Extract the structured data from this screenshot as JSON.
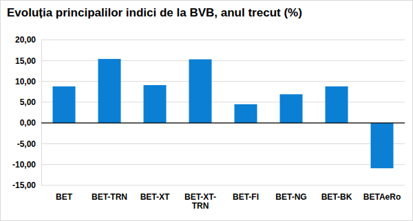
{
  "chart_data": {
    "type": "bar",
    "title": "Evoluția principalilor indici de la BVB, anul trecut (%)",
    "categories": [
      "BET",
      "BET-TRN",
      "BET-XT",
      "BET-XT-TRN",
      "BET-FI",
      "BET-NG",
      "BET-BK",
      "BETAeRo"
    ],
    "values": [
      8.8,
      15.4,
      9.1,
      15.3,
      4.5,
      6.9,
      8.8,
      -10.9
    ],
    "color": "#0b7fd4",
    "ylim": [
      -15,
      20
    ],
    "yticks": [
      {
        "value": -15,
        "label": "-15,00"
      },
      {
        "value": -10,
        "label": "-10,00"
      },
      {
        "value": -5,
        "label": "-5,00"
      },
      {
        "value": 0,
        "label": "0,00"
      },
      {
        "value": 5,
        "label": "5,00"
      },
      {
        "value": 10,
        "label": "10,00"
      },
      {
        "value": 15,
        "label": "15,00"
      },
      {
        "value": 20,
        "label": "20,00"
      }
    ],
    "grid": true
  }
}
